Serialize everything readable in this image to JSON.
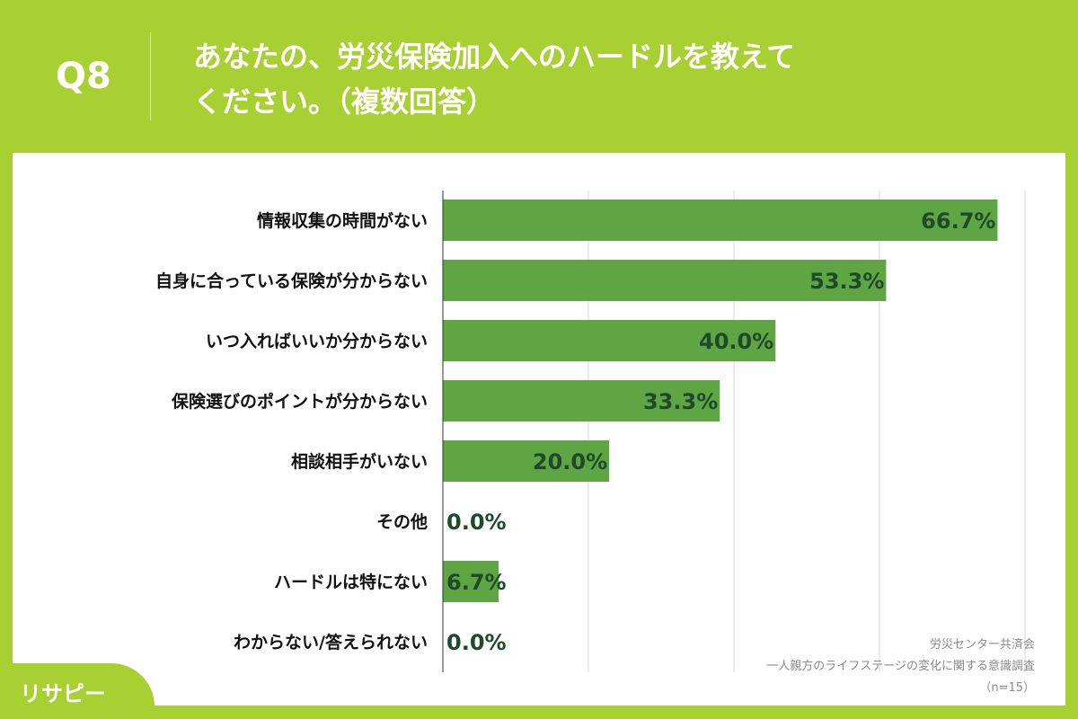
{
  "header": {
    "q": "Q8",
    "title_line1": "あなたの、労災保険加入へのハードルを教えて",
    "title_line2": "ください。（複数回答）"
  },
  "source": {
    "line1": "労災センター共済会",
    "line2": "一人親方のライフステージの変化に関する意識調査",
    "line3": "（n=15）"
  },
  "logo": {
    "text": "リサピー"
  },
  "colors": {
    "bar": "#5fa544",
    "label": "#1d4a2a",
    "bg": "#a9d032"
  },
  "chart_data": {
    "type": "bar",
    "orientation": "horizontal",
    "title": "あなたの、労災保険加入へのハードルを教えてください。（複数回答）",
    "categories": [
      "情報収集の時間がない",
      "自身に合っている保険が分からない",
      "いつ入ればいいか分からない",
      "保険選びのポイントが分からない",
      "相談相手がいない",
      "その他",
      "ハードルは特にない",
      "わからない/答えられない"
    ],
    "values": [
      66.7,
      53.3,
      40.0,
      33.3,
      20.0,
      0.0,
      6.7,
      0.0
    ],
    "labels": [
      "66.7%",
      "53.3%",
      "40.0%",
      "33.3%",
      "20.0%",
      "0.0%",
      "6.7%",
      "0.0%"
    ],
    "xlim": [
      0,
      70
    ],
    "grid": true,
    "unit": "%"
  }
}
